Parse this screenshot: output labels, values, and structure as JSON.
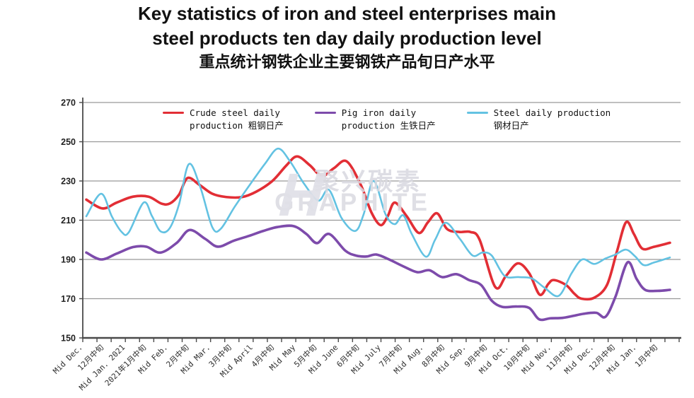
{
  "header": {
    "title_line1": "Key statistics of iron and steel enterprises main",
    "title_line2": "steel products ten day daily production level",
    "title_cn": "重点统计钢铁企业主要钢铁产品旬日产水平"
  },
  "watermark": {
    "logo": "H",
    "cn": "聚兴碳素",
    "en": "GRAPHITE"
  },
  "chart_data": {
    "type": "line",
    "title": "Key statistics of iron and steel enterprises main steel products ten day daily production level",
    "title_cn": "重点统计钢铁企业主要钢铁产品旬日产水平",
    "xlabel": "",
    "ylabel": "",
    "ylim": [
      150,
      270
    ],
    "y_ticks": [
      150,
      170,
      190,
      210,
      230,
      250,
      270
    ],
    "grid": true,
    "legend_position": "top",
    "x_labels": [
      "Mid Dec.",
      "12月中旬",
      "Mid Jan. 2021",
      "2021年1月中旬",
      "Mid Feb.",
      "2月中旬",
      "Mid Mar.",
      "3月中旬",
      "Mid April",
      "4月中旬",
      "Mid May",
      "5月中旬",
      "Mid June",
      "6月中旬",
      "Mid July",
      "7月中旬",
      "Mid Aug.",
      "8月中旬",
      "Mid Sep.",
      "9月中旬",
      "Mid Oct.",
      "10月中旬",
      "Mid Nov.",
      "11月中旬",
      "Mid Dec.",
      "12月中旬",
      "Mid Jan.",
      "1月中旬"
    ],
    "series": [
      {
        "key": "crude-steel",
        "label_line1": "Crude steel daily",
        "label_line2": "production 粗钢日产",
        "color": "#e22e35",
        "stroke_width": 3.6,
        "values": [
          220.5,
          216.2,
          220.5,
          222.0,
          218.5,
          231.4,
          224.0,
          221.8,
          223.8,
          230.7,
          242.4,
          234.8,
          237.5,
          229.8,
          207.8,
          215.3,
          205.8,
          208.1,
          204.0,
          190.2,
          182.2,
          183.5,
          178.0,
          174.4,
          170.4,
          188.0,
          202.4,
          196.7
        ],
        "trace": [
          [
            122,
            220.5
          ],
          [
            145,
            216
          ],
          [
            165,
            219
          ],
          [
            188,
            222
          ],
          [
            210,
            222
          ],
          [
            228,
            218.5
          ],
          [
            240,
            218.5
          ],
          [
            253,
            223
          ],
          [
            265,
            231.5
          ],
          [
            282,
            228
          ],
          [
            300,
            223.5
          ],
          [
            320,
            221.8
          ],
          [
            342,
            221.8
          ],
          [
            362,
            224.5
          ],
          [
            385,
            230
          ],
          [
            405,
            238
          ],
          [
            420,
            242.5
          ],
          [
            438,
            238
          ],
          [
            455,
            232.5
          ],
          [
            472,
            236.5
          ],
          [
            490,
            240
          ],
          [
            510,
            228
          ],
          [
            525,
            214
          ],
          [
            538,
            207.5
          ],
          [
            548,
            212
          ],
          [
            558,
            219
          ],
          [
            575,
            212
          ],
          [
            592,
            203.5
          ],
          [
            605,
            209
          ],
          [
            618,
            213.5
          ],
          [
            632,
            205.5
          ],
          [
            650,
            204
          ],
          [
            665,
            204
          ],
          [
            678,
            200
          ],
          [
            700,
            176
          ],
          [
            715,
            181.5
          ],
          [
            732,
            188
          ],
          [
            748,
            183
          ],
          [
            763,
            172
          ],
          [
            775,
            177.5
          ],
          [
            783,
            179.5
          ],
          [
            800,
            177
          ],
          [
            812,
            172.5
          ],
          [
            822,
            170
          ],
          [
            840,
            170.5
          ],
          [
            858,
            177
          ],
          [
            872,
            194
          ],
          [
            885,
            209
          ],
          [
            896,
            203
          ],
          [
            908,
            195.5
          ],
          [
            925,
            196.5
          ],
          [
            947,
            198.5
          ]
        ]
      },
      {
        "key": "pig-iron",
        "label_line1": "Pig iron daily",
        "label_line2": "production 生铁日产",
        "color": "#7d4bab",
        "stroke_width": 3.6,
        "values": [
          193.8,
          190.4,
          194.7,
          196.5,
          195.7,
          204.9,
          199.0,
          199.1,
          202.6,
          206.2,
          207.0,
          198.4,
          198.6,
          191.9,
          191.8,
          186.9,
          183.9,
          181.2,
          180.5,
          173.3,
          165.9,
          165.4,
          160.2,
          161.1,
          162.6,
          168.8,
          182.0,
          174.1
        ],
        "trace": [
          [
            122,
            193.5
          ],
          [
            143,
            190
          ],
          [
            165,
            193
          ],
          [
            188,
            196.3
          ],
          [
            207,
            196.5
          ],
          [
            227,
            193.5
          ],
          [
            250,
            198.5
          ],
          [
            268,
            205
          ],
          [
            290,
            200.5
          ],
          [
            308,
            196.5
          ],
          [
            330,
            199.5
          ],
          [
            352,
            202
          ],
          [
            372,
            204.5
          ],
          [
            392,
            206.5
          ],
          [
            415,
            207
          ],
          [
            433,
            203
          ],
          [
            448,
            198.3
          ],
          [
            465,
            203
          ],
          [
            488,
            194.5
          ],
          [
            503,
            192
          ],
          [
            518,
            191.5
          ],
          [
            532,
            192.5
          ],
          [
            550,
            190
          ],
          [
            570,
            186.5
          ],
          [
            590,
            183.5
          ],
          [
            607,
            184.5
          ],
          [
            625,
            181
          ],
          [
            645,
            182.5
          ],
          [
            663,
            179.5
          ],
          [
            680,
            177
          ],
          [
            695,
            169
          ],
          [
            710,
            165.8
          ],
          [
            730,
            166
          ],
          [
            748,
            165.3
          ],
          [
            762,
            159.5
          ],
          [
            778,
            160
          ],
          [
            795,
            160.2
          ],
          [
            810,
            161.2
          ],
          [
            825,
            162.3
          ],
          [
            843,
            162.8
          ],
          [
            856,
            160.8
          ],
          [
            870,
            171
          ],
          [
            887,
            188.5
          ],
          [
            900,
            180
          ],
          [
            912,
            174.5
          ],
          [
            930,
            174
          ],
          [
            947,
            174.5
          ]
        ]
      },
      {
        "key": "steel",
        "label_line1": "Steel daily production",
        "label_line2": "钢材日产",
        "color": "#63c2e2",
        "stroke_width": 2.6,
        "values": [
          212.0,
          221.0,
          206.6,
          216.5,
          205.5,
          238.6,
          209.0,
          214.2,
          230.0,
          244.0,
          236.0,
          221.3,
          215.8,
          208.0,
          221.0,
          211.4,
          194.3,
          207.0,
          197.2,
          192.9,
          181.6,
          180.5,
          174.1,
          182.4,
          187.9,
          192.3,
          191.6,
          188.7
        ],
        "trace": [
          [
            122,
            212
          ],
          [
            143,
            223.5
          ],
          [
            158,
            212
          ],
          [
            172,
            204
          ],
          [
            182,
            203.8
          ],
          [
            203,
            219
          ],
          [
            215,
            212
          ],
          [
            227,
            204.3
          ],
          [
            240,
            206
          ],
          [
            253,
            218
          ],
          [
            267,
            238.6
          ],
          [
            283,
            227
          ],
          [
            300,
            206.5
          ],
          [
            312,
            205.6
          ],
          [
            332,
            217
          ],
          [
            355,
            229
          ],
          [
            375,
            239
          ],
          [
            393,
            246.5
          ],
          [
            410,
            240
          ],
          [
            430,
            228.5
          ],
          [
            450,
            220
          ],
          [
            465,
            225.5
          ],
          [
            483,
            211
          ],
          [
            502,
            204.5
          ],
          [
            514,
            213
          ],
          [
            528,
            230
          ],
          [
            545,
            213
          ],
          [
            558,
            208
          ],
          [
            570,
            212.5
          ],
          [
            582,
            203
          ],
          [
            602,
            191.4
          ],
          [
            615,
            200
          ],
          [
            630,
            208.7
          ],
          [
            650,
            200.5
          ],
          [
            668,
            192
          ],
          [
            682,
            193.5
          ],
          [
            695,
            192
          ],
          [
            713,
            181.7
          ],
          [
            733,
            181
          ],
          [
            752,
            180.3
          ],
          [
            770,
            175.5
          ],
          [
            790,
            171.5
          ],
          [
            808,
            183
          ],
          [
            823,
            190
          ],
          [
            840,
            187.7
          ],
          [
            856,
            190.5
          ],
          [
            870,
            192.5
          ],
          [
            885,
            195
          ],
          [
            898,
            191.5
          ],
          [
            910,
            187.1
          ],
          [
            925,
            188.5
          ],
          [
            947,
            191
          ]
        ]
      }
    ],
    "colors": {
      "grid": "#999999",
      "axis": "#4a4a4a",
      "tick_label": "#2e2e2e"
    }
  }
}
